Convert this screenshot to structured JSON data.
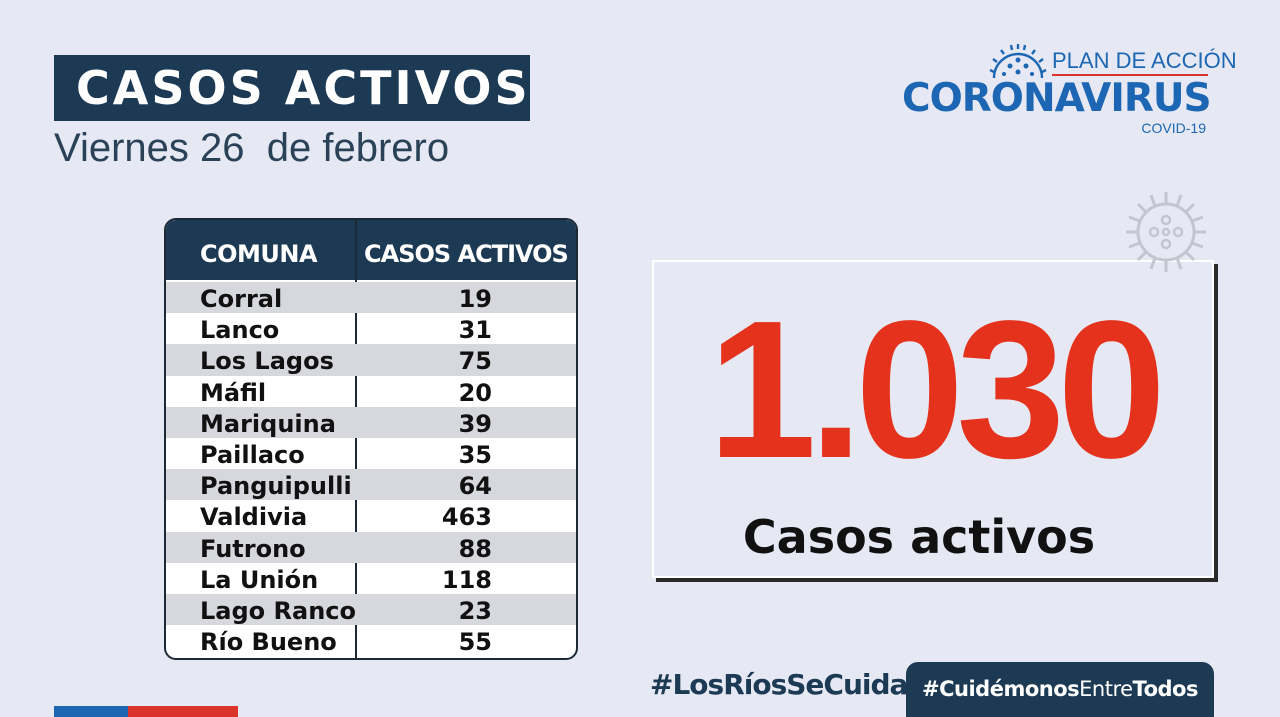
{
  "header": {
    "title": "CASOS ACTIVOS",
    "date": "Viernes 26  de febrero"
  },
  "logo": {
    "line1": "PLAN DE ACCIÓN",
    "line2": "CORONAVIRUS",
    "line3": "COVID-19",
    "icon": "virus-icon",
    "colors": {
      "blue": "#1c66b3",
      "red": "#d9332a"
    }
  },
  "table": {
    "headers": [
      "COMUNA",
      "CASOS ACTIVOS"
    ],
    "rows": [
      {
        "comuna": "Corral",
        "casos": "19"
      },
      {
        "comuna": "Lanco",
        "casos": "31"
      },
      {
        "comuna": "Los Lagos",
        "casos": "75"
      },
      {
        "comuna": "Máfil",
        "casos": "20"
      },
      {
        "comuna": "Mariquina",
        "casos": "39"
      },
      {
        "comuna": "Paillaco",
        "casos": "35"
      },
      {
        "comuna": "Panguipulli",
        "casos": "64"
      },
      {
        "comuna": "Valdivia",
        "casos": "463"
      },
      {
        "comuna": "Futrono",
        "casos": "88"
      },
      {
        "comuna": "La Unión",
        "casos": "118"
      },
      {
        "comuna": "Lago Ranco",
        "casos": "23"
      },
      {
        "comuna": "Río Bueno",
        "casos": "55"
      }
    ]
  },
  "total": {
    "value": "1.030",
    "label": "Casos activos",
    "color": "#e5321c",
    "icon": "virus-icon"
  },
  "hashtags": {
    "first": "#LosRíosSeCuida",
    "second_a": "#Cuidémonos",
    "second_b": "Entre",
    "second_c": "Todos"
  },
  "colors": {
    "navy": "#1d3a55",
    "background": "#e6e9f4"
  }
}
